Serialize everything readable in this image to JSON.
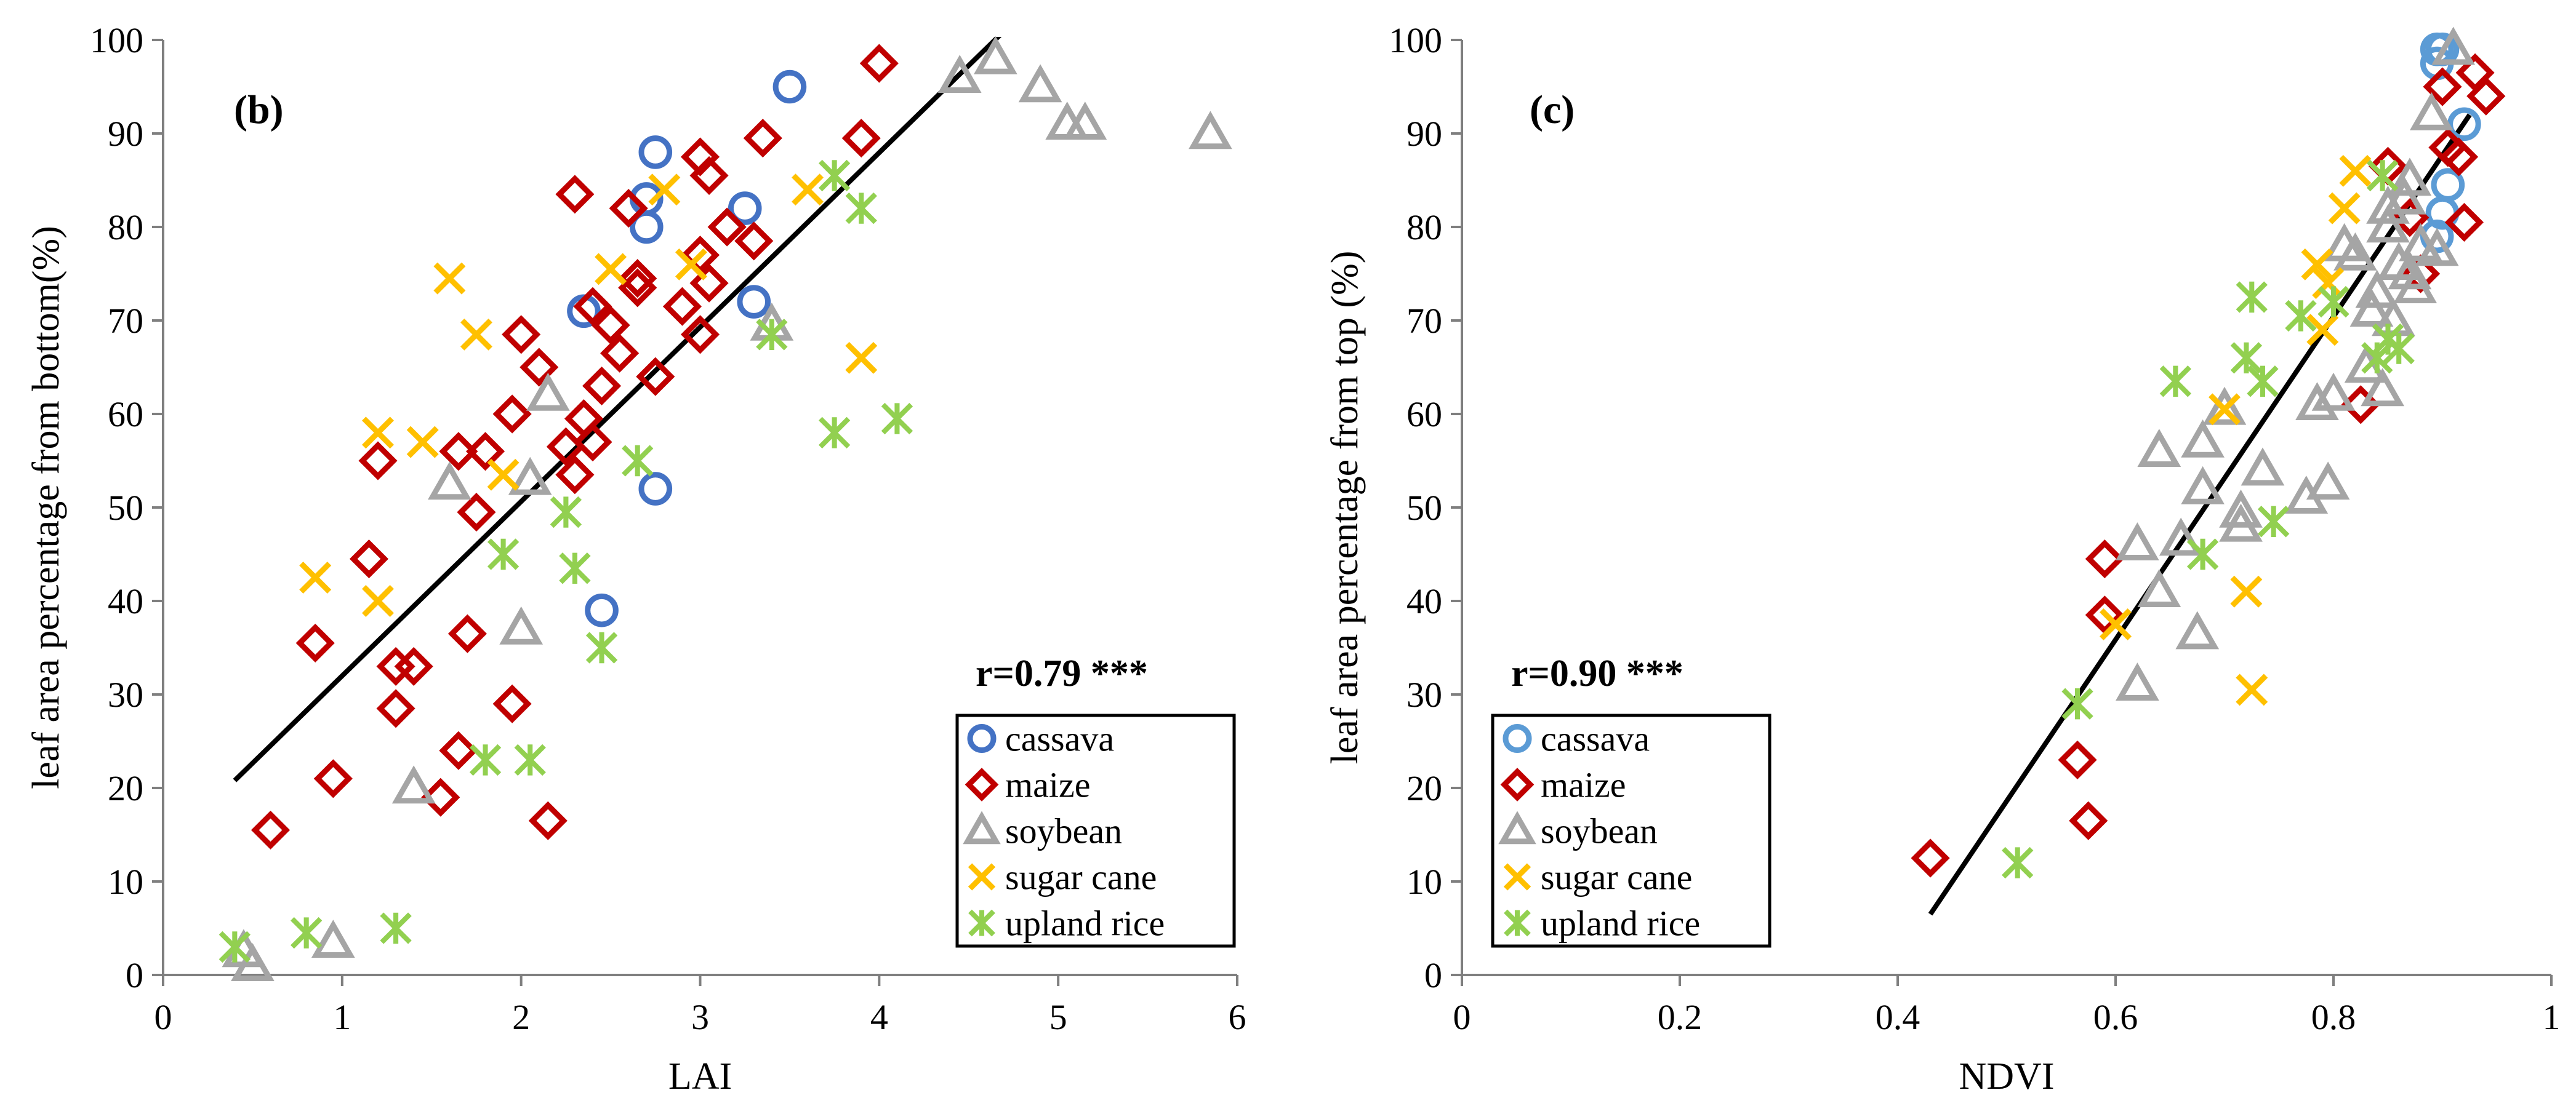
{
  "chart_data": [
    {
      "type": "scatter",
      "panel_label": "(b)",
      "xlabel": "LAI",
      "ylabel": "leaf area percentage from bottom(%)",
      "xlim": [
        0,
        6
      ],
      "ylim": [
        0,
        100
      ],
      "xticks": [
        "0",
        "1",
        "2",
        "3",
        "4",
        "5",
        "6"
      ],
      "yticks": [
        "0",
        "10",
        "20",
        "30",
        "40",
        "50",
        "60",
        "70",
        "80",
        "90",
        "100"
      ],
      "grid": false,
      "legend_position": "bottom-right",
      "annotation": "r=0.79 ***",
      "fit_line": [
        [
          0.4,
          20.8
        ],
        [
          4.7,
          101
        ]
      ],
      "series": [
        {
          "name": "cassava",
          "marker": "circle",
          "color": "#4472C4",
          "points": [
            [
              2.35,
              71
            ],
            [
              2.7,
              83
            ],
            [
              2.7,
              80
            ],
            [
              2.75,
              88
            ],
            [
              3.25,
              82
            ],
            [
              3.3,
              72
            ],
            [
              3.5,
              95
            ],
            [
              2.75,
              52
            ],
            [
              2.45,
              39
            ]
          ]
        },
        {
          "name": "maize",
          "marker": "diamond",
          "color": "#C00000",
          "points": [
            [
              0.6,
              15.5
            ],
            [
              0.85,
              35.5
            ],
            [
              0.95,
              21
            ],
            [
              1.15,
              44.5
            ],
            [
              1.2,
              55
            ],
            [
              1.3,
              28.5
            ],
            [
              1.3,
              33
            ],
            [
              1.4,
              33
            ],
            [
              1.55,
              19
            ],
            [
              1.65,
              24
            ],
            [
              1.65,
              56
            ],
            [
              1.7,
              36.5
            ],
            [
              1.75,
              49.5
            ],
            [
              1.8,
              56
            ],
            [
              1.95,
              60
            ],
            [
              1.95,
              29
            ],
            [
              2.0,
              68.5
            ],
            [
              2.1,
              65
            ],
            [
              2.15,
              16.5
            ],
            [
              2.25,
              56.5
            ],
            [
              2.3,
              83.5
            ],
            [
              2.3,
              53.5
            ],
            [
              2.35,
              59.5
            ],
            [
              2.4,
              57
            ],
            [
              2.4,
              71.5
            ],
            [
              2.45,
              63
            ],
            [
              2.5,
              69.5
            ],
            [
              2.55,
              66.5
            ],
            [
              2.6,
              82
            ],
            [
              2.65,
              73.5
            ],
            [
              2.65,
              74.5
            ],
            [
              2.75,
              64
            ],
            [
              2.9,
              71.5
            ],
            [
              3.0,
              68.5
            ],
            [
              3.0,
              87.5
            ],
            [
              3.0,
              77
            ],
            [
              3.05,
              85.5
            ],
            [
              3.05,
              74
            ],
            [
              3.15,
              80
            ],
            [
              3.3,
              78.5
            ],
            [
              3.35,
              89.5
            ],
            [
              3.9,
              89.5
            ],
            [
              4.0,
              97.5
            ]
          ]
        },
        {
          "name": "soybean",
          "marker": "triangle",
          "color": "#A5A5A5",
          "points": [
            [
              0.45,
              2.5
            ],
            [
              0.5,
              1
            ],
            [
              0.95,
              3.5
            ],
            [
              1.4,
              20
            ],
            [
              1.6,
              52.5
            ],
            [
              2.0,
              37
            ],
            [
              2.05,
              53
            ],
            [
              2.15,
              62
            ],
            [
              3.4,
              69.5
            ],
            [
              4.45,
              96
            ],
            [
              4.65,
              98
            ],
            [
              4.9,
              95
            ],
            [
              5.05,
              91
            ],
            [
              5.15,
              91
            ],
            [
              5.85,
              90
            ]
          ]
        },
        {
          "name": "sugar cane",
          "marker": "x",
          "color": "#FFC000",
          "points": [
            [
              0.85,
              42.5
            ],
            [
              1.2,
              58
            ],
            [
              1.2,
              40
            ],
            [
              1.45,
              57
            ],
            [
              1.6,
              74.5
            ],
            [
              1.75,
              68.5
            ],
            [
              1.9,
              53.5
            ],
            [
              2.5,
              75.5
            ],
            [
              2.8,
              84
            ],
            [
              2.95,
              76
            ],
            [
              3.6,
              84
            ],
            [
              3.9,
              66
            ]
          ]
        },
        {
          "name": "upland rice",
          "marker": "asterisk",
          "color": "#92D050",
          "points": [
            [
              0.4,
              3
            ],
            [
              0.8,
              4.5
            ],
            [
              1.3,
              5
            ],
            [
              1.8,
              23
            ],
            [
              1.9,
              45
            ],
            [
              2.05,
              23
            ],
            [
              2.25,
              49.5
            ],
            [
              2.3,
              43.5
            ],
            [
              2.45,
              35
            ],
            [
              2.65,
              55
            ],
            [
              3.4,
              68.5
            ],
            [
              3.75,
              58
            ],
            [
              3.75,
              85.5
            ],
            [
              3.9,
              82
            ],
            [
              4.1,
              59.5
            ]
          ]
        }
      ]
    },
    {
      "type": "scatter",
      "panel_label": "(c)",
      "xlabel": "NDVI",
      "ylabel": "leaf area percentage from top (%)",
      "xlim": [
        0,
        1
      ],
      "ylim": [
        0,
        100
      ],
      "xticks": [
        "0",
        "0.2",
        "0.4",
        "0.6",
        "0.8",
        "1"
      ],
      "yticks": [
        "0",
        "10",
        "20",
        "30",
        "40",
        "50",
        "60",
        "70",
        "80",
        "90",
        "100"
      ],
      "grid": false,
      "legend_position": "bottom-left",
      "annotation": "r=0.90 ***",
      "fit_line": [
        [
          0.43,
          6.5
        ],
        [
          0.925,
          92
        ]
      ],
      "series": [
        {
          "name": "cassava",
          "marker": "circle",
          "color": "#5B9BD5",
          "points": [
            [
              0.895,
              99
            ],
            [
              0.9,
              99
            ],
            [
              0.895,
              97.5
            ],
            [
              0.92,
              91
            ],
            [
              0.905,
              84.5
            ],
            [
              0.9,
              81.5
            ],
            [
              0.895,
              79
            ]
          ]
        },
        {
          "name": "maize",
          "marker": "diamond",
          "color": "#C00000",
          "points": [
            [
              0.43,
              12.5
            ],
            [
              0.565,
              23
            ],
            [
              0.575,
              16.5
            ],
            [
              0.59,
              44.5
            ],
            [
              0.59,
              38.5
            ],
            [
              0.825,
              61
            ],
            [
              0.85,
              86.5
            ],
            [
              0.87,
              81
            ],
            [
              0.88,
              75
            ],
            [
              0.9,
              95
            ],
            [
              0.905,
              88.5
            ],
            [
              0.915,
              87.5
            ],
            [
              0.92,
              80.5
            ],
            [
              0.93,
              96.5
            ],
            [
              0.94,
              94
            ]
          ]
        },
        {
          "name": "soybean",
          "marker": "triangle",
          "color": "#A5A5A5",
          "points": [
            [
              0.62,
              31
            ],
            [
              0.62,
              46
            ],
            [
              0.64,
              56
            ],
            [
              0.64,
              41
            ],
            [
              0.66,
              46.5
            ],
            [
              0.675,
              36.5
            ],
            [
              0.68,
              52
            ],
            [
              0.68,
              57
            ],
            [
              0.7,
              60.5
            ],
            [
              0.715,
              49.5
            ],
            [
              0.715,
              48
            ],
            [
              0.735,
              54
            ],
            [
              0.775,
              51
            ],
            [
              0.785,
              61
            ],
            [
              0.795,
              52.5
            ],
            [
              0.8,
              62
            ],
            [
              0.81,
              78
            ],
            [
              0.82,
              77
            ],
            [
              0.83,
              65
            ],
            [
              0.835,
              71
            ],
            [
              0.84,
              73
            ],
            [
              0.845,
              62.5
            ],
            [
              0.85,
              82
            ],
            [
              0.85,
              80
            ],
            [
              0.855,
              70
            ],
            [
              0.86,
              76
            ],
            [
              0.865,
              83
            ],
            [
              0.87,
              85
            ],
            [
              0.87,
              75
            ],
            [
              0.875,
              73.5
            ],
            [
              0.88,
              78
            ],
            [
              0.89,
              92
            ],
            [
              0.895,
              77.5
            ],
            [
              0.91,
              99
            ]
          ]
        },
        {
          "name": "sugar cane",
          "marker": "x",
          "color": "#FFC000",
          "points": [
            [
              0.6,
              37.5
            ],
            [
              0.7,
              60.5
            ],
            [
              0.72,
              41
            ],
            [
              0.725,
              30.5
            ],
            [
              0.785,
              76
            ],
            [
              0.79,
              69
            ],
            [
              0.795,
              74
            ],
            [
              0.81,
              82
            ],
            [
              0.82,
              86
            ]
          ]
        },
        {
          "name": "upland rice",
          "marker": "asterisk",
          "color": "#92D050",
          "points": [
            [
              0.51,
              12
            ],
            [
              0.565,
              29
            ],
            [
              0.655,
              63.5
            ],
            [
              0.68,
              45
            ],
            [
              0.72,
              66
            ],
            [
              0.725,
              72.5
            ],
            [
              0.735,
              63.5
            ],
            [
              0.745,
              48.5
            ],
            [
              0.77,
              70.5
            ],
            [
              0.8,
              72
            ],
            [
              0.84,
              66
            ],
            [
              0.845,
              85.5
            ],
            [
              0.85,
              68
            ],
            [
              0.86,
              67
            ]
          ]
        }
      ]
    }
  ]
}
